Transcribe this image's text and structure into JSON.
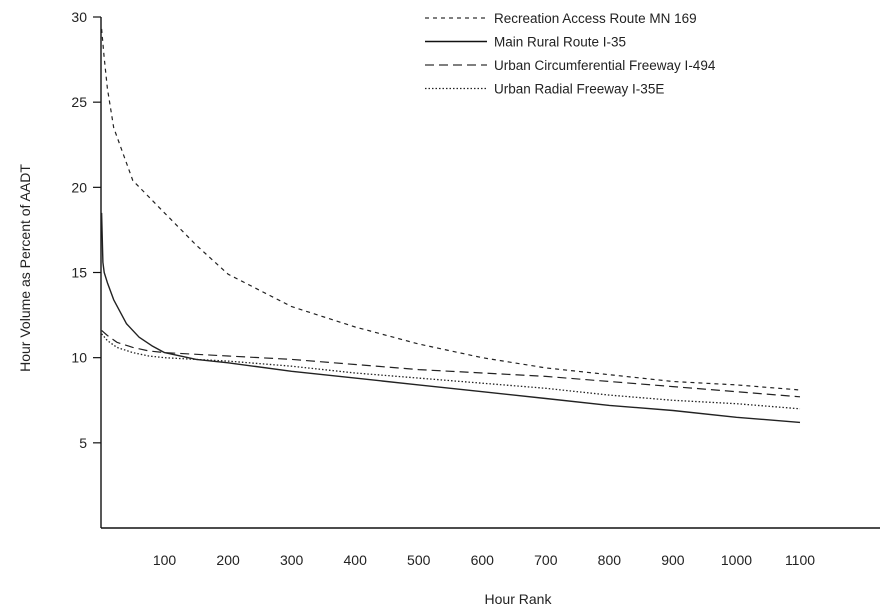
{
  "chart_data": {
    "type": "line",
    "xlabel": "Hour Rank",
    "ylabel": "Hour Volume as Percent of AADT",
    "xlim": [
      0,
      1100
    ],
    "ylim": [
      0,
      30
    ],
    "x_ticks": [
      100,
      200,
      300,
      400,
      500,
      600,
      700,
      800,
      900,
      1000,
      1100
    ],
    "y_ticks": [
      5,
      10,
      15,
      20,
      25,
      30
    ],
    "legend_position": "top-right",
    "series": [
      {
        "name": "Recreation Access Route MN 169",
        "style": "short-dash",
        "x": [
          1,
          5,
          10,
          20,
          50,
          100,
          150,
          200,
          300,
          400,
          500,
          600,
          700,
          800,
          900,
          1000,
          1100
        ],
        "y": [
          29.3,
          27.6,
          25.8,
          23.5,
          20.4,
          18.5,
          16.6,
          14.9,
          13.0,
          11.8,
          10.8,
          10.0,
          9.4,
          9.0,
          8.6,
          8.4,
          8.1
        ]
      },
      {
        "name": "Main Rural Route I-35",
        "style": "solid",
        "x": [
          1,
          3,
          5,
          10,
          20,
          40,
          60,
          80,
          100,
          150,
          200,
          300,
          400,
          500,
          600,
          700,
          800,
          900,
          1000,
          1100
        ],
        "y": [
          18.5,
          15.6,
          15.0,
          14.4,
          13.4,
          12.0,
          11.2,
          10.7,
          10.3,
          9.9,
          9.7,
          9.2,
          8.8,
          8.4,
          8.0,
          7.6,
          7.2,
          6.9,
          6.5,
          6.2
        ]
      },
      {
        "name": "Urban Circumferential Freeway I-494",
        "style": "long-dash",
        "x": [
          1,
          10,
          25,
          50,
          75,
          100,
          150,
          200,
          300,
          400,
          500,
          600,
          700,
          800,
          900,
          1000,
          1100
        ],
        "y": [
          11.6,
          11.3,
          10.9,
          10.6,
          10.4,
          10.3,
          10.2,
          10.1,
          9.9,
          9.6,
          9.3,
          9.1,
          8.9,
          8.6,
          8.3,
          8.0,
          7.7
        ]
      },
      {
        "name": "Urban Radial Freeway I-35E",
        "style": "dotted",
        "x": [
          1,
          10,
          25,
          50,
          75,
          100,
          150,
          200,
          300,
          400,
          500,
          600,
          700,
          800,
          900,
          1000,
          1100
        ],
        "y": [
          11.4,
          11.0,
          10.6,
          10.3,
          10.1,
          10.0,
          9.9,
          9.8,
          9.5,
          9.1,
          8.8,
          8.5,
          8.2,
          7.8,
          7.5,
          7.3,
          7.0
        ]
      }
    ]
  }
}
